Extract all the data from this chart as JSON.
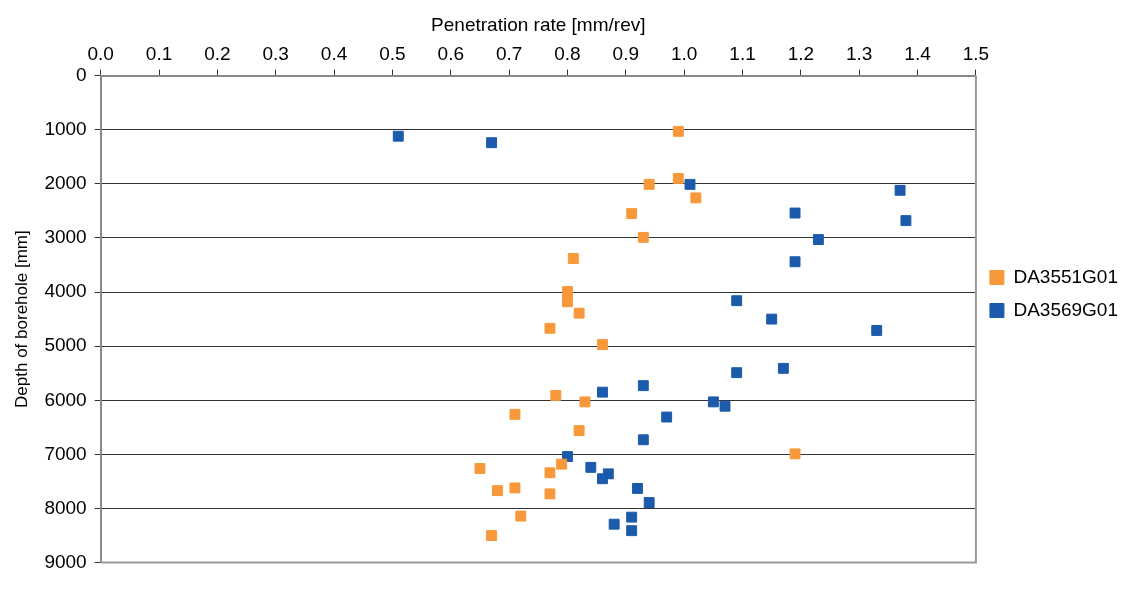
{
  "chart_data": {
    "type": "scatter",
    "xlabel": "Penetration rate [mm/rev]",
    "ylabel": "Depth of borehole [mm]",
    "xlim": [
      0,
      1.5
    ],
    "xticks": [
      {
        "value": 0,
        "label": "0.0"
      },
      0.1,
      0.2,
      0.3,
      0.4,
      0.5,
      0.6,
      0.7,
      0.8,
      0.9,
      {
        "value": 1,
        "label": "1.0"
      },
      1.1,
      1.2,
      1.3,
      1.4,
      1.5
    ],
    "ylim": [
      9000,
      0
    ],
    "yticks": [
      0,
      1000,
      2000,
      3000,
      4000,
      5000,
      6000,
      7000,
      8000,
      9000
    ],
    "grid": "y",
    "legend": "right",
    "marker": "square",
    "series": [
      {
        "name": "DA3551G01",
        "color": "#f7993a",
        "x": [
          0.99,
          0.99,
          0.94,
          1.02,
          0.91,
          0.93,
          0.81,
          0.8,
          0.8,
          0.82,
          0.77,
          0.86,
          0.78,
          0.83,
          0.71,
          0.82,
          0.79,
          0.65,
          0.77,
          0.71,
          0.68,
          0.77,
          0.72,
          0.67,
          1.19
        ],
        "values": [
          1030,
          1900,
          2010,
          2260,
          2550,
          2990,
          3380,
          3990,
          4180,
          4390,
          4670,
          4970,
          5910,
          6030,
          6260,
          6560,
          7180,
          7260,
          7340,
          7620,
          7670,
          7730,
          8140,
          8500,
          6990
        ]
      },
      {
        "name": "DA3569G01",
        "color": "#1c5aab",
        "x": [
          0.51,
          0.67,
          1.01,
          1.37,
          1.19,
          1.38,
          1.23,
          1.19,
          1.09,
          1.15,
          1.33,
          1.09,
          1.17,
          0.93,
          0.86,
          1.05,
          1.07,
          0.97,
          0.93,
          0.8,
          0.84,
          0.87,
          0.86,
          0.92,
          0.94,
          0.91,
          0.88,
          0.91
        ],
        "values": [
          1120,
          1240,
          2010,
          2120,
          2540,
          2680,
          3030,
          3440,
          4160,
          4500,
          4710,
          5490,
          5410,
          5730,
          5850,
          6030,
          6110,
          6310,
          6730,
          7040,
          7240,
          7360,
          7450,
          7630,
          7890,
          8160,
          8290,
          8410
        ]
      }
    ]
  }
}
